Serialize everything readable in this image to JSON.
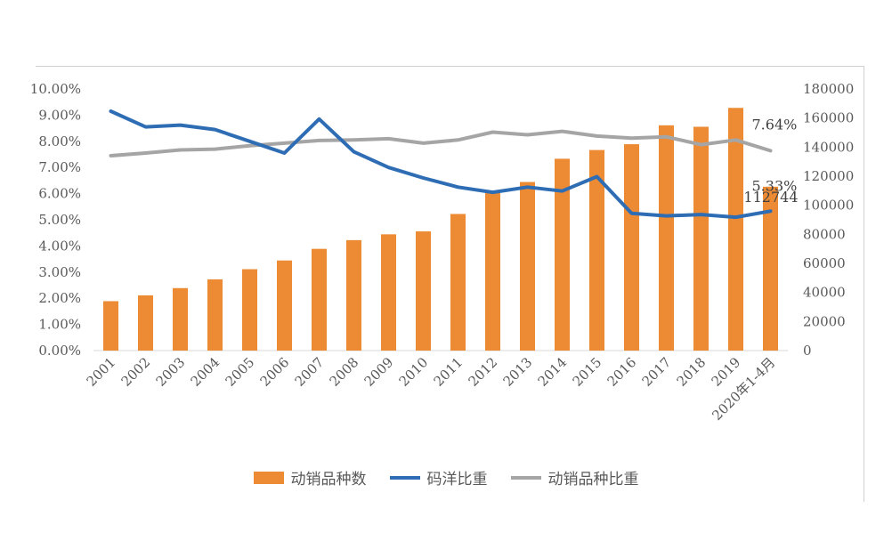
{
  "chart_data": {
    "type": "bar+line",
    "categories": [
      "2001",
      "2002",
      "2003",
      "2004",
      "2005",
      "2006",
      "2007",
      "2008",
      "2009",
      "2010",
      "2011",
      "2012",
      "2013",
      "2014",
      "2015",
      "2016",
      "2017",
      "2018",
      "2019",
      "2020年1-4月"
    ],
    "left_axis": {
      "ylim": [
        0,
        10
      ],
      "ticks": [
        "0.00%",
        "1.00%",
        "2.00%",
        "3.00%",
        "4.00%",
        "5.00%",
        "6.00%",
        "7.00%",
        "8.00%",
        "9.00%",
        "10.00%"
      ]
    },
    "right_axis": {
      "ylim": [
        0,
        180000
      ],
      "ticks": [
        "0",
        "20000",
        "40000",
        "60000",
        "80000",
        "100000",
        "120000",
        "140000",
        "160000",
        "180000"
      ]
    },
    "series": [
      {
        "name": "动销品种数",
        "kind": "bar",
        "axis": "right",
        "color": "#ED8B34",
        "values": [
          34000,
          38000,
          43000,
          49000,
          56000,
          62000,
          70000,
          76000,
          80000,
          82000,
          94000,
          110000,
          116000,
          132000,
          138000,
          142000,
          155000,
          154000,
          167000,
          112744
        ]
      },
      {
        "name": "码洋比重",
        "kind": "line",
        "axis": "left",
        "color": "#2E6DB4",
        "values": [
          9.15,
          8.55,
          8.62,
          8.45,
          8.0,
          7.55,
          8.85,
          7.6,
          7.0,
          6.6,
          6.25,
          6.05,
          6.25,
          6.1,
          6.65,
          5.25,
          5.15,
          5.2,
          5.1,
          5.33
        ]
      },
      {
        "name": "动销品种比重",
        "kind": "line",
        "axis": "left",
        "color": "#A5A5A5",
        "values": [
          7.45,
          7.55,
          7.67,
          7.7,
          7.83,
          7.93,
          8.03,
          8.05,
          8.1,
          7.93,
          8.05,
          8.35,
          8.25,
          8.38,
          8.2,
          8.12,
          8.17,
          7.87,
          8.05,
          7.64
        ]
      }
    ],
    "data_labels": {
      "last_bar": "112744",
      "last_line_blue": "5.33%",
      "last_line_gray": "7.64%"
    },
    "legend_position": "bottom"
  }
}
